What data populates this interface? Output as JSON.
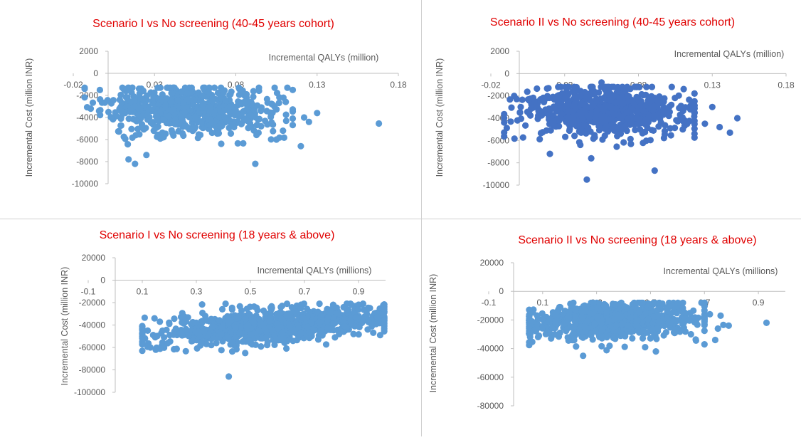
{
  "colors": {
    "series_light": "#5b9bd5",
    "series_dark": "#4472c4",
    "title": "#e00000",
    "axis": "#bfbfbf",
    "text": "#595959"
  },
  "chart_data": [
    {
      "type": "scatter",
      "title": "Scenario I vs No screening (40-45 years cohort)",
      "xlabel": "Incremental QALYs (million)",
      "ylabel": "Incremental Cost (million INR)",
      "xlim": [
        -0.02,
        0.18
      ],
      "ylim": [
        -10000,
        2000
      ],
      "x_ticks": [
        "-0.02",
        "0.03",
        "0.08",
        "0.13",
        "0.18"
      ],
      "y_ticks": [
        "2000",
        "0",
        "-2000",
        "-4000",
        "-6000",
        "-8000",
        "-10000"
      ],
      "color": "#5b9bd5",
      "cloud": {
        "n": 650,
        "x_center": 0.05,
        "x_spread": 0.026,
        "x_min": -0.013,
        "x_max": 0.115,
        "y_center": -3300,
        "y_spread": 1150,
        "y_slope": -4000,
        "y_min": -8200,
        "y_max": -1300,
        "seed": 11
      },
      "points": [
        [
          0.168,
          -4550
        ],
        [
          0.13,
          -3600
        ],
        [
          0.122,
          -4000
        ],
        [
          0.125,
          -4400
        ],
        [
          0.12,
          -6600
        ],
        [
          0.092,
          -8200
        ],
        [
          0.018,
          -8200
        ],
        [
          0.025,
          -7400
        ],
        [
          0.014,
          -7800
        ],
        [
          0.109,
          -5200
        ],
        [
          0.105,
          -6000
        ],
        [
          0.111,
          -4300
        ]
      ]
    },
    {
      "type": "scatter",
      "title": "Scenario II vs No screening (40-45 years cohort)",
      "xlabel": "Incremental QALYs (million)",
      "ylabel": "Incremental Cost (million INR)",
      "xlim": [
        -0.02,
        0.18
      ],
      "ylim": [
        -10000,
        2000
      ],
      "x_ticks": [
        "-0.02",
        "0.03",
        "0.08",
        "0.13",
        "0.18"
      ],
      "y_ticks": [
        "2000",
        "0",
        "-2000",
        "-4000",
        "-6000",
        "-8000",
        "-10000"
      ],
      "color": "#4472c4",
      "cloud": {
        "n": 700,
        "x_center": 0.055,
        "x_spread": 0.027,
        "x_min": -0.011,
        "x_max": 0.118,
        "y_center": -3400,
        "y_spread": 1100,
        "y_slope": -3500,
        "y_min": -7600,
        "y_max": -1200,
        "seed": 23
      },
      "points": [
        [
          0.147,
          -4000
        ],
        [
          0.142,
          -5300
        ],
        [
          0.13,
          -3000
        ],
        [
          0.135,
          -4800
        ],
        [
          0.125,
          -4500
        ],
        [
          0.091,
          -8700
        ],
        [
          0.045,
          -9500
        ],
        [
          0.048,
          -7600
        ],
        [
          0.11,
          -5000
        ],
        [
          0.055,
          -800
        ],
        [
          0.02,
          -7200
        ]
      ]
    },
    {
      "type": "scatter",
      "title": "Scenario I vs No screening (18 years & above)",
      "xlabel": "Incremental QALYs (millions)",
      "ylabel": "Incremental Cost (million INR)",
      "xlim": [
        -0.1,
        1.0
      ],
      "ylim": [
        -100000,
        20000
      ],
      "x_ticks": [
        "-0.1",
        "0.1",
        "0.3",
        "0.5",
        "0.7",
        "0.9"
      ],
      "y_ticks": [
        "20000",
        "0",
        "-20000",
        "-40000",
        "-60000",
        "-80000",
        "-100000"
      ],
      "color": "#5b9bd5",
      "cloud": {
        "n": 900,
        "x_center": 0.58,
        "x_spread": 0.22,
        "x_min": 0.1,
        "x_max": 0.995,
        "y_center": -40000,
        "y_spread": 7500,
        "y_slope": 19000,
        "y_min": -65000,
        "y_max": -21000,
        "seed": 37
      },
      "points": [
        [
          0.42,
          -86000
        ],
        [
          0.1,
          -63000
        ],
        [
          0.13,
          -60000
        ],
        [
          0.15,
          -62000
        ],
        [
          0.12,
          -45000
        ],
        [
          0.98,
          -49000
        ],
        [
          0.97,
          -33000
        ],
        [
          0.2,
          -39000
        ],
        [
          0.11,
          -52000
        ]
      ]
    },
    {
      "type": "scatter",
      "title": "Scenario II vs No screening (18 years & above)",
      "xlabel": "Incremental QALYs (millions)",
      "ylabel": "Incremental Cost (million INR)",
      "xlim": [
        -0.1,
        1.0
      ],
      "ylim": [
        -80000,
        20000
      ],
      "x_ticks": [
        "-0.1",
        "0.1",
        "0.3",
        "0.5",
        "0.7",
        "0.9"
      ],
      "y_ticks": [
        "20000",
        "0",
        "-20000",
        "-40000",
        "-60000",
        "-80000"
      ],
      "color": "#5b9bd5",
      "cloud": {
        "n": 900,
        "x_center": 0.36,
        "x_spread": 0.15,
        "x_min": 0.05,
        "x_max": 0.7,
        "y_center": -20500,
        "y_spread": 6000,
        "y_slope": 6000,
        "y_min": -42000,
        "y_max": -8000,
        "seed": 53
      },
      "points": [
        [
          0.93,
          -22000
        ],
        [
          0.79,
          -24000
        ],
        [
          0.77,
          -23500
        ],
        [
          0.75,
          -26000
        ],
        [
          0.76,
          -17000
        ],
        [
          0.74,
          -34000
        ],
        [
          0.72,
          -16000
        ],
        [
          0.25,
          -45000
        ],
        [
          0.52,
          -42000
        ],
        [
          0.48,
          -39000
        ],
        [
          0.06,
          -21000
        ],
        [
          0.07,
          -27000
        ],
        [
          0.65,
          -30000
        ]
      ]
    }
  ]
}
